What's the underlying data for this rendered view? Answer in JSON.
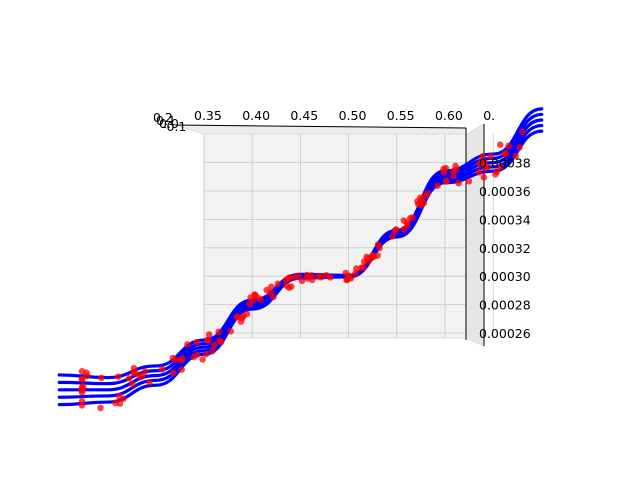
{
  "colors": {
    "pane": "#f2f2f2",
    "grid": "#c8c8c8",
    "curve": "#0000ff",
    "points": "#ff0000"
  },
  "chart_data": {
    "type": "scatter",
    "projection": "3d",
    "x_ticks": [
      "0.35",
      "0.40",
      "0.45",
      "0.50",
      "0.55",
      "0.60",
      "0."
    ],
    "z_ticks": [
      "0.00026",
      "0.00028",
      "0.00030",
      "0.00032",
      "0.00034",
      "0.00036",
      "0.00038"
    ],
    "y_ticks_overlapping": [
      "0.2",
      "0.1",
      "0.0",
      "-0.1"
    ],
    "zlim": [
      0.00025,
      0.00039
    ],
    "series": [
      {
        "kind": "surface-curves",
        "style": "blue lines",
        "x": [
          0.2,
          0.25,
          0.3,
          0.35,
          0.4,
          0.45,
          0.5,
          0.55,
          0.6,
          0.65,
          0.7
        ],
        "z": [
          0.00022,
          0.00022,
          0.00023,
          0.00025,
          0.00028,
          0.0003,
          0.0003,
          0.00033,
          0.00037,
          0.00038,
          0.00041
        ]
      },
      {
        "kind": "samples",
        "style": "red dots",
        "x": [
          0.22,
          0.28,
          0.33,
          0.38,
          0.42,
          0.46,
          0.5,
          0.54,
          0.58,
          0.62,
          0.66
        ],
        "z": [
          0.00022,
          0.00022,
          0.00024,
          0.00026,
          0.00029,
          0.0003,
          0.0003,
          0.00032,
          0.00036,
          0.00038,
          0.00039
        ]
      }
    ]
  }
}
